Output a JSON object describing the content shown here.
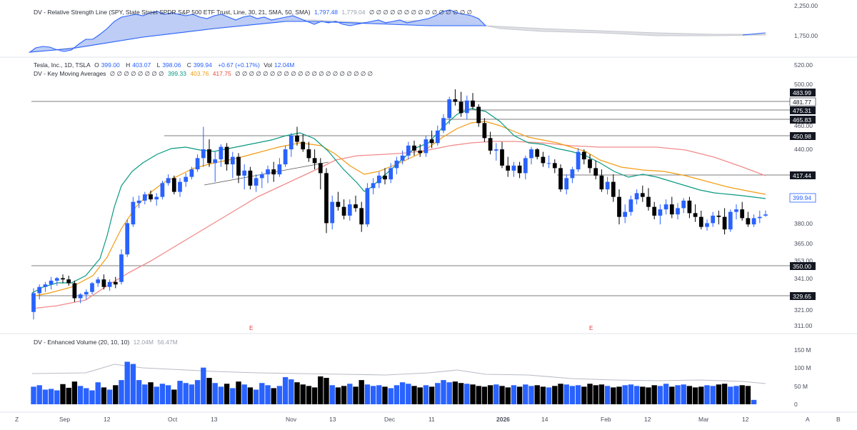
{
  "legends": {
    "rs": {
      "label": "DV - Relative Strength Line (SPY, State Street SPDR S&P 500 ETF Trust, Line, 30, 21, SMA, 50, SMA)",
      "v1": "1,797.48",
      "v2": "1,779.04",
      "dots": "∅ ∅ ∅ ∅ ∅ ∅ ∅ ∅ ∅ ∅ ∅ ∅ ∅ ∅ ∅"
    },
    "price": {
      "symbol": "Tesla, Inc., 1D, TSLA",
      "o_label": "O",
      "o": "399.00",
      "h_label": "H",
      "h": "403.07",
      "l_label": "L",
      "l": "398.06",
      "c_label": "C",
      "c": "399.94",
      "chg": "+0.67 (+0.17%)",
      "vol_label": "Vol",
      "vol": "12.04M"
    },
    "kma": {
      "label": "DV - Key Moving Averages",
      "dots": "∅ ∅ ∅ ∅ ∅ ∅ ∅ ∅",
      "ma1": "399.33",
      "ma2": "403.76",
      "ma3": "417.75",
      "dots2": "∅ ∅ ∅ ∅ ∅ ∅ ∅ ∅ ∅ ∅ ∅ ∅ ∅ ∅ ∅ ∅ ∅ ∅ ∅ ∅"
    },
    "vol": {
      "label": "DV - Enhanced Volume (20, 10, 10)",
      "v1": "12.04M",
      "v2": "56.47M"
    }
  },
  "colors": {
    "up": "#2962ff",
    "down": "#000000",
    "ma1": "#089981",
    "ma2": "#f39c12",
    "ma3": "#f28b8b",
    "rs_fill": "#b3c7f7",
    "rs_ma_fill": "#d7d9de"
  },
  "axes": {
    "rs_ticks": [
      "2,250.00",
      "1,750.00"
    ],
    "price_ticks": [
      "520.00",
      "500.00",
      "460.00",
      "440.00",
      "380.00",
      "365.00",
      "353.00",
      "341.00",
      "321.00",
      "311.00"
    ],
    "volume_ticks": [
      "150 M",
      "100 M",
      "50 M",
      "0"
    ],
    "x_ticks": [
      "Sep",
      "12",
      "Oct",
      "13",
      "Nov",
      "13",
      "Dec",
      "11",
      "2026",
      "14",
      "Feb",
      "12",
      "Mar",
      "12"
    ],
    "corner_left": "Z",
    "corner_a": "A",
    "corner_b": "B"
  },
  "level_tags": [
    "483.99",
    "481.77",
    "475.31",
    "465.83",
    "450.98",
    "417.44",
    "350.00",
    "329.65"
  ],
  "last_price_tag": "399.94",
  "earnings_markers": [
    "E",
    "E"
  ],
  "chart_data": {
    "type": "candlestick",
    "title": "Tesla, Inc., 1D, TSLA",
    "ylim": [
      311,
      520
    ],
    "candles": [
      [
        322,
        341,
        316,
        337
      ],
      [
        337,
        344,
        332,
        342
      ],
      [
        342,
        346,
        338,
        344
      ],
      [
        344,
        350,
        340,
        347
      ],
      [
        347,
        350,
        343,
        349
      ],
      [
        349,
        352,
        345,
        348
      ],
      [
        348,
        351,
        343,
        345
      ],
      [
        345,
        347,
        330,
        333
      ],
      [
        333,
        337,
        329,
        336
      ],
      [
        336,
        340,
        332,
        338
      ],
      [
        338,
        346,
        336,
        345
      ],
      [
        345,
        350,
        342,
        348
      ],
      [
        348,
        352,
        340,
        342
      ],
      [
        342,
        348,
        339,
        346
      ],
      [
        346,
        350,
        341,
        344
      ],
      [
        346,
        372,
        344,
        368
      ],
      [
        368,
        396,
        366,
        393
      ],
      [
        392,
        414,
        390,
        410
      ],
      [
        409,
        415,
        405,
        411
      ],
      [
        411,
        418,
        408,
        416
      ],
      [
        416,
        419,
        410,
        412
      ],
      [
        412,
        417,
        407,
        414
      ],
      [
        414,
        427,
        412,
        425
      ],
      [
        425,
        432,
        423,
        429
      ],
      [
        429,
        431,
        416,
        418
      ],
      [
        418,
        429,
        414,
        426
      ],
      [
        426,
        433,
        422,
        430
      ],
      [
        430,
        438,
        428,
        436
      ],
      [
        436,
        448,
        434,
        445
      ],
      [
        445,
        470,
        438,
        452
      ],
      [
        452,
        460,
        438,
        441
      ],
      [
        441,
        450,
        426,
        444
      ],
      [
        444,
        456,
        438,
        454
      ],
      [
        454,
        457,
        435,
        440
      ],
      [
        440,
        450,
        429,
        446
      ],
      [
        446,
        449,
        425,
        431
      ],
      [
        431,
        440,
        420,
        435
      ],
      [
        435,
        438,
        420,
        423
      ],
      [
        423,
        432,
        418,
        429
      ],
      [
        429,
        434,
        421,
        432
      ],
      [
        432,
        439,
        425,
        436
      ],
      [
        436,
        442,
        426,
        432
      ],
      [
        432,
        445,
        430,
        440
      ],
      [
        440,
        455,
        438,
        452
      ],
      [
        452,
        465,
        446,
        463
      ],
      [
        463,
        470,
        455,
        458
      ],
      [
        458,
        464,
        450,
        452
      ],
      [
        452,
        458,
        442,
        445
      ],
      [
        445,
        452,
        436,
        441
      ],
      [
        441,
        445,
        420,
        433
      ],
      [
        433,
        437,
        385,
        393
      ],
      [
        393,
        415,
        388,
        410
      ],
      [
        410,
        418,
        403,
        406
      ],
      [
        406,
        412,
        396,
        399
      ],
      [
        399,
        412,
        395,
        408
      ],
      [
        408,
        415,
        402,
        405
      ],
      [
        405,
        410,
        386,
        392
      ],
      [
        392,
        425,
        390,
        421
      ],
      [
        421,
        429,
        416,
        425
      ],
      [
        425,
        434,
        421,
        431
      ],
      [
        431,
        437,
        424,
        428
      ],
      [
        428,
        441,
        425,
        437
      ],
      [
        437,
        446,
        432,
        443
      ],
      [
        443,
        451,
        440,
        447
      ],
      [
        447,
        458,
        444,
        455
      ],
      [
        455,
        459,
        447,
        451
      ],
      [
        451,
        456,
        446,
        449
      ],
      [
        449,
        463,
        446,
        460
      ],
      [
        460,
        467,
        453,
        457
      ],
      [
        457,
        471,
        455,
        467
      ],
      [
        467,
        480,
        465,
        477
      ],
      [
        477,
        494,
        472,
        492
      ],
      [
        492,
        500,
        487,
        490
      ],
      [
        490,
        498,
        478,
        481
      ],
      [
        481,
        495,
        476,
        491
      ],
      [
        491,
        497,
        484,
        486
      ],
      [
        486,
        488,
        470,
        473
      ],
      [
        473,
        477,
        458,
        461
      ],
      [
        461,
        466,
        448,
        451
      ],
      [
        451,
        457,
        443,
        452
      ],
      [
        452,
        458,
        437,
        439
      ],
      [
        439,
        446,
        430,
        435
      ],
      [
        435,
        442,
        430,
        439
      ],
      [
        439,
        442,
        429,
        433
      ],
      [
        433,
        447,
        428,
        445
      ],
      [
        445,
        454,
        440,
        452
      ],
      [
        452,
        453,
        444,
        446
      ],
      [
        446,
        450,
        438,
        441
      ],
      [
        441,
        447,
        437,
        441
      ],
      [
        441,
        444,
        433,
        437
      ],
      [
        437,
        440,
        418,
        420
      ],
      [
        420,
        432,
        416,
        429
      ],
      [
        429,
        438,
        425,
        436
      ],
      [
        436,
        453,
        434,
        450
      ],
      [
        450,
        452,
        440,
        444
      ],
      [
        444,
        448,
        433,
        437
      ],
      [
        437,
        443,
        428,
        431
      ],
      [
        431,
        436,
        418,
        420
      ],
      [
        420,
        430,
        416,
        426
      ],
      [
        426,
        432,
        410,
        414
      ],
      [
        414,
        420,
        392,
        398
      ],
      [
        398,
        408,
        393,
        402
      ],
      [
        402,
        415,
        399,
        412
      ],
      [
        412,
        420,
        408,
        417
      ],
      [
        417,
        423,
        410,
        414
      ],
      [
        414,
        421,
        403,
        406
      ],
      [
        406,
        410,
        396,
        399
      ],
      [
        399,
        408,
        392,
        404
      ],
      [
        404,
        412,
        400,
        408
      ],
      [
        408,
        414,
        397,
        400
      ],
      [
        400,
        409,
        396,
        405
      ],
      [
        405,
        413,
        401,
        411
      ],
      [
        411,
        414,
        397,
        401
      ],
      [
        401,
        408,
        394,
        398
      ],
      [
        398,
        403,
        388,
        390
      ],
      [
        390,
        396,
        387,
        393
      ],
      [
        393,
        402,
        390,
        399
      ],
      [
        399,
        403,
        392,
        398
      ],
      [
        398,
        405,
        384,
        388
      ],
      [
        388,
        404,
        386,
        402
      ],
      [
        402,
        408,
        396,
        404
      ],
      [
        404,
        410,
        395,
        397
      ],
      [
        397,
        402,
        390,
        392
      ],
      [
        392,
        400,
        390,
        397
      ],
      [
        397,
        403,
        393,
        398
      ],
      [
        399,
        403.07,
        398.06,
        399.94
      ]
    ],
    "volume": [
      48,
      52,
      40,
      42,
      38,
      55,
      45,
      62,
      50,
      44,
      38,
      60,
      46,
      40,
      52,
      66,
      116,
      110,
      66,
      54,
      60,
      48,
      56,
      52,
      40,
      64,
      58,
      54,
      66,
      100,
      72,
      58,
      48,
      56,
      44,
      62,
      54,
      46,
      40,
      58,
      52,
      44,
      50,
      74,
      68,
      60,
      54,
      50,
      46,
      76,
      72,
      52,
      46,
      50,
      56,
      48,
      66,
      54,
      50,
      52,
      48,
      44,
      52,
      60,
      56,
      50,
      46,
      52,
      48,
      58,
      66,
      60,
      62,
      58,
      56,
      54,
      50,
      48,
      52,
      54,
      50,
      46,
      52,
      48,
      54,
      50,
      52,
      48,
      46,
      50,
      56,
      54,
      50,
      52,
      48,
      56,
      52,
      54,
      50,
      46,
      48,
      52,
      54,
      50,
      48,
      46,
      52,
      50,
      56,
      48,
      52,
      54,
      50,
      46,
      48,
      52,
      50,
      54,
      56,
      48,
      50,
      52,
      50,
      12
    ],
    "ma_green": "short-term moving average (399.33)",
    "ma_orange": "medium-term moving average (403.76)",
    "ma_pink": "long-term moving average (417.75)"
  }
}
